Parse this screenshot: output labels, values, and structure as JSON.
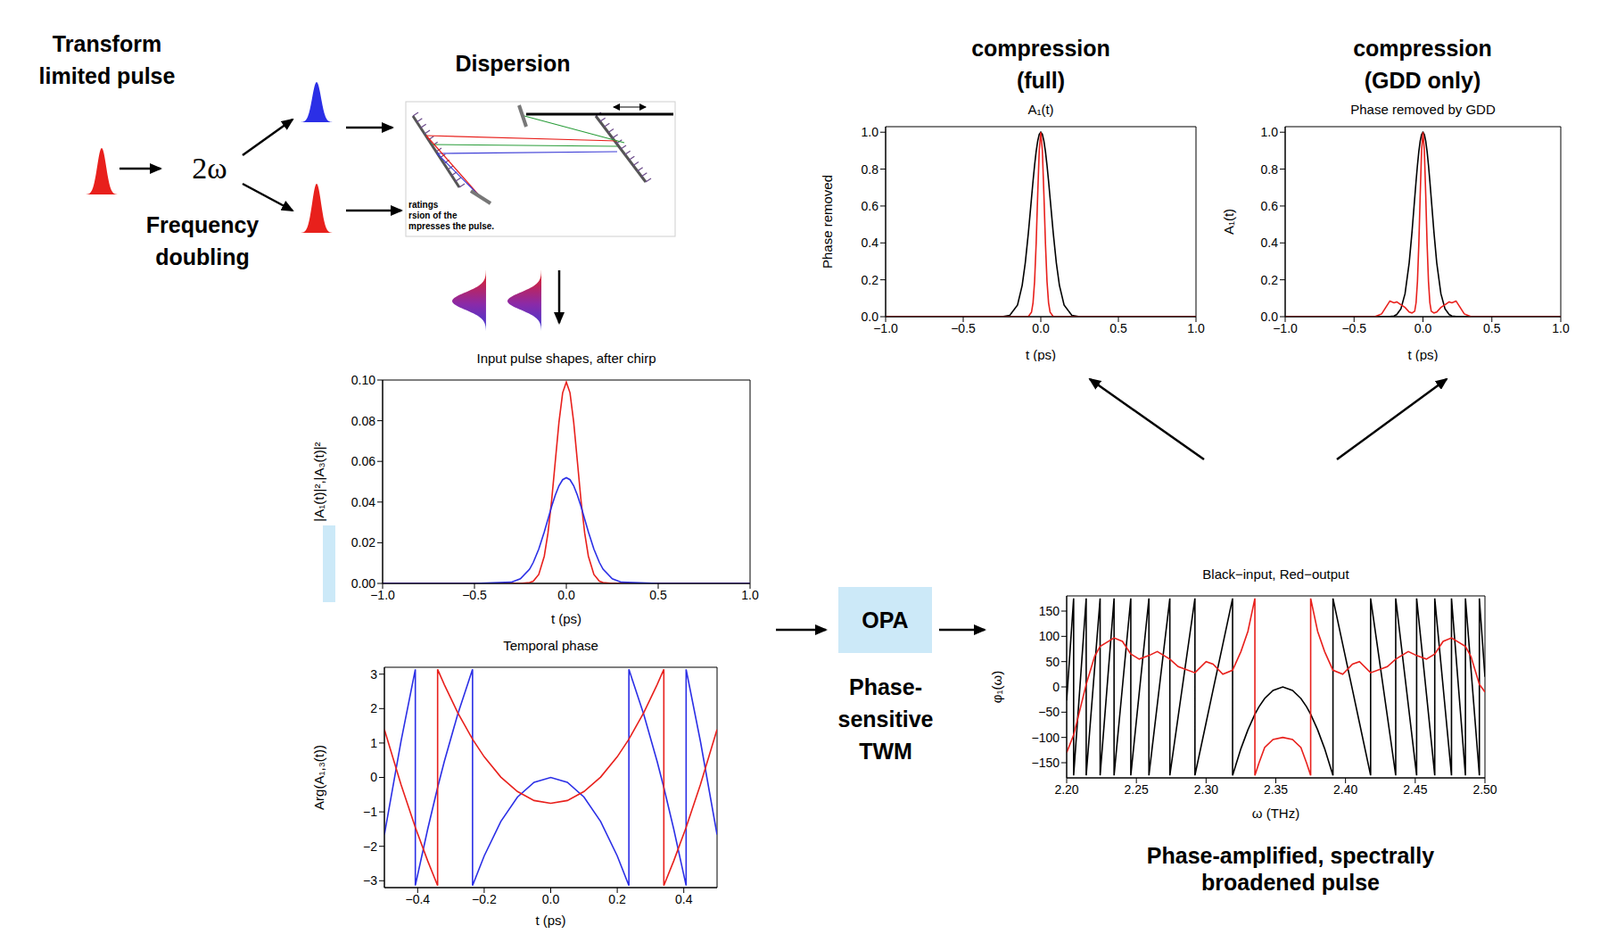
{
  "diagram": {
    "source": {
      "title": "Transform limited pulse",
      "operation": "2ω",
      "operation_label": "Frequency doubling"
    },
    "dispersion": {
      "title": "Dispersion",
      "image_text": [
        "ratings",
        "rsion of the",
        "mpresses the pulse."
      ]
    },
    "opa": {
      "label": "OPA",
      "caption": "Phase-sensitive TWM"
    },
    "output_caption": "Phase-amplified, spectrally broadened pulse",
    "compression_full_title": "compression (full)",
    "compression_gdd_title": "compression (GDD only)"
  },
  "chart_data": [
    {
      "type": "line",
      "title": "Input pulse shapes, after chirp",
      "x_label": "t (ps)",
      "y_label": "|A₁(t)|²,|A₃(t)|²",
      "x": [
        -1,
        -0.5,
        -0.3,
        -0.25,
        -0.2,
        -0.18,
        -0.15,
        -0.12,
        -0.1,
        -0.08,
        -0.06,
        -0.04,
        -0.02,
        0,
        0.02,
        0.04,
        0.06,
        0.08,
        0.1,
        0.12,
        0.15,
        0.18,
        0.2,
        0.25,
        0.3,
        0.5,
        1
      ],
      "series": [
        {
          "color": "#e8201c",
          "values": [
            0,
            0,
            0,
            0,
            0.0004,
            0.0011,
            0.0044,
            0.0134,
            0.0247,
            0.0407,
            0.0601,
            0.0793,
            0.0937,
            0.099,
            0.0937,
            0.0793,
            0.0601,
            0.0407,
            0.0247,
            0.0134,
            0.0044,
            0.0011,
            0.0004,
            0,
            0,
            0,
            0
          ]
        },
        {
          "color": "#2b2fe6",
          "values": [
            0,
            0,
            0.0006,
            0.0023,
            0.007,
            0.0103,
            0.0169,
            0.0253,
            0.0316,
            0.0378,
            0.0434,
            0.048,
            0.051,
            0.052,
            0.051,
            0.048,
            0.0434,
            0.0378,
            0.0316,
            0.0253,
            0.0169,
            0.0103,
            0.007,
            0.0023,
            0.0006,
            0,
            0
          ]
        }
      ],
      "xlim": [
        -1,
        1
      ],
      "ylim": [
        0,
        0.1
      ],
      "xticks": [
        {
          "value": -1,
          "label": "−1.0"
        },
        {
          "value": -0.5,
          "label": "−0.5"
        },
        {
          "value": 0,
          "label": "0.0"
        },
        0.5,
        {
          "value": 1,
          "label": "1.0"
        }
      ],
      "yticks": [
        {
          "value": 0,
          "label": "0.00"
        },
        0.02,
        0.04,
        0.06,
        0.08,
        {
          "value": 0.1,
          "label": "0.10"
        }
      ]
    },
    {
      "type": "line",
      "title": "Temporal phase",
      "x_label": "t (ps)",
      "y_label": "Arg(A₁,₃(t))",
      "x": [
        -0.5,
        -0.45,
        -0.407,
        -0.407,
        -0.37,
        -0.34,
        -0.34,
        -0.32,
        -0.28,
        -0.235,
        -0.235,
        -0.2,
        -0.15,
        -0.1,
        -0.05,
        0,
        0.05,
        0.1,
        0.15,
        0.2,
        0.235,
        0.235,
        0.28,
        0.32,
        0.34,
        0.34,
        0.37,
        0.407,
        0.407,
        0.45,
        0.5
      ],
      "series": [
        {
          "color": "#2b2fe6",
          "values": [
            -1.66,
            1.05,
            3.14,
            -3.14,
            -1.51,
            -0.29,
            -0.29,
            0.46,
            1.82,
            3.14,
            -3.14,
            -2.28,
            -1.28,
            -0.57,
            -0.14,
            0,
            -0.14,
            -0.57,
            -1.28,
            -2.28,
            -3.14,
            3.14,
            1.82,
            0.46,
            -0.29,
            -0.29,
            -1.51,
            -3.14,
            3.14,
            1.05,
            -1.66
          ]
        },
        {
          "color": "#e8201c",
          "values": [
            1.39,
            -0.21,
            -1.45,
            -1.45,
            -2.42,
            -3.14,
            3.14,
            2.7,
            1.89,
            1.11,
            1.11,
            0.6,
            0.01,
            -0.41,
            -0.67,
            -0.75,
            -0.67,
            -0.41,
            0.01,
            0.6,
            1.11,
            1.11,
            1.89,
            2.7,
            3.14,
            -3.14,
            -2.42,
            -1.45,
            -1.45,
            -0.21,
            1.39
          ]
        }
      ],
      "xlim": [
        -0.5,
        0.5
      ],
      "ylim": [
        -3.2,
        3.2
      ],
      "xticks": [
        {
          "value": -0.4,
          "label": "−0.4"
        },
        {
          "value": -0.2,
          "label": "−0.2"
        },
        {
          "value": 0,
          "label": "0.0"
        },
        0.2,
        0.4
      ],
      "yticks": [
        {
          "value": -3,
          "label": "−3"
        },
        {
          "value": -2,
          "label": "−2"
        },
        {
          "value": -1,
          "label": "−1"
        },
        0,
        1,
        2,
        3
      ]
    },
    {
      "type": "line",
      "title": "Black−input, Red−output",
      "x_label": "ω (THz)",
      "y_label": "φ₁(ω)",
      "x": [
        2.2,
        2.205,
        2.205,
        2.21,
        2.214,
        2.214,
        2.22,
        2.224,
        2.224,
        2.234,
        2.234,
        2.24,
        2.246,
        2.246,
        2.252,
        2.259,
        2.259,
        2.265,
        2.274,
        2.274,
        2.28,
        2.292,
        2.292,
        2.3,
        2.305,
        2.312,
        2.319,
        2.319,
        2.325,
        2.33,
        2.335,
        2.335,
        2.338,
        2.342,
        2.348,
        2.355,
        2.362,
        2.368,
        2.372,
        2.375,
        2.375,
        2.38,
        2.385,
        2.391,
        2.391,
        2.398,
        2.405,
        2.41,
        2.418,
        2.418,
        2.43,
        2.436,
        2.436,
        2.445,
        2.451,
        2.451,
        2.458,
        2.464,
        2.464,
        2.47,
        2.476,
        2.476,
        2.486,
        2.486,
        2.49,
        2.496,
        2.496,
        2.5
      ],
      "series": [
        {
          "color": "#000000",
          "values": [
            -27,
            175,
            -175,
            19,
            175,
            -175,
            35,
            175,
            -175,
            175,
            -175,
            0,
            175,
            -175,
            -13,
            175,
            -175,
            -35,
            175,
            -175,
            -58,
            175,
            -175,
            -71,
            -6,
            84,
            175,
            -175,
            -122,
            -85,
            -54,
            -54,
            -39,
            -23,
            -7,
            0,
            -7,
            -23,
            -39,
            -54,
            -54,
            -85,
            -122,
            -175,
            175,
            84,
            -6,
            -71,
            -175,
            175,
            -58,
            -175,
            175,
            -35,
            -175,
            175,
            -13,
            -175,
            175,
            0,
            -175,
            175,
            -175,
            175,
            35,
            -175,
            175,
            20
          ]
        },
        {
          "color": "#e8201c",
          "values": [
            -130,
            -95,
            -95,
            -40,
            5,
            5,
            60,
            80,
            80,
            97,
            97,
            90,
            65,
            65,
            55,
            62,
            62,
            70,
            55,
            55,
            40,
            28,
            28,
            50,
            45,
            25,
            33,
            33,
            70,
            110,
            175,
            -175,
            -150,
            -120,
            -104,
            -100,
            -104,
            -120,
            -150,
            -175,
            175,
            110,
            70,
            33,
            33,
            25,
            45,
            50,
            28,
            28,
            40,
            55,
            55,
            70,
            62,
            62,
            55,
            65,
            65,
            90,
            97,
            97,
            80,
            80,
            60,
            5,
            5,
            -10
          ]
        }
      ],
      "xlim": [
        2.2,
        2.5
      ],
      "ylim": [
        -180,
        180
      ],
      "xticks": [
        {
          "value": 2.2,
          "label": "2.20"
        },
        2.25,
        {
          "value": 2.3,
          "label": "2.30"
        },
        2.35,
        {
          "value": 2.4,
          "label": "2.40"
        },
        2.45,
        {
          "value": 2.5,
          "label": "2.50"
        }
      ],
      "yticks": [
        {
          "value": -150,
          "label": "−150"
        },
        {
          "value": -100,
          "label": "−100"
        },
        {
          "value": -50,
          "label": "−50"
        },
        0,
        50,
        100,
        150
      ]
    },
    {
      "type": "line",
      "title": "A₁(t)",
      "x_label": "t (ps)",
      "y_label": "Phase removed",
      "x": [
        -1,
        -0.4,
        -0.3,
        -0.25,
        -0.2,
        -0.15,
        -0.12,
        -0.1,
        -0.08,
        -0.06,
        -0.05,
        -0.04,
        -0.03,
        -0.02,
        -0.01,
        0,
        0.01,
        0.02,
        0.03,
        0.04,
        0.05,
        0.06,
        0.08,
        0.1,
        0.12,
        0.15,
        0.2,
        0.25,
        0.3,
        0.4,
        1
      ],
      "series": [
        {
          "color": "#000000",
          "values": [
            0,
            0,
            0,
            0,
            0.007,
            0.063,
            0.17,
            0.292,
            0.455,
            0.642,
            0.735,
            0.821,
            0.895,
            0.952,
            0.988,
            1,
            0.988,
            0.952,
            0.895,
            0.821,
            0.735,
            0.642,
            0.455,
            0.292,
            0.17,
            0.063,
            0.007,
            0,
            0,
            0,
            0
          ]
        },
        {
          "color": "#e8201c",
          "values": [
            0,
            0,
            0,
            0,
            0,
            0,
            0,
            0,
            0.001,
            0.024,
            0.076,
            0.191,
            0.395,
            0.661,
            0.902,
            1,
            0.902,
            0.661,
            0.395,
            0.191,
            0.076,
            0.024,
            0.001,
            0,
            0,
            0,
            0,
            0,
            0,
            0,
            0
          ]
        }
      ],
      "xlim": [
        -1,
        1
      ],
      "ylim": [
        0,
        1.03
      ],
      "xticks": [
        {
          "value": -1,
          "label": "−1.0"
        },
        {
          "value": -0.5,
          "label": "−0.5"
        },
        {
          "value": 0,
          "label": "0.0"
        },
        0.5,
        {
          "value": 1,
          "label": "1.0"
        }
      ],
      "yticks": [
        {
          "value": 0,
          "label": "0.0"
        },
        0.2,
        0.4,
        0.6,
        0.8,
        {
          "value": 1,
          "label": "1.0"
        }
      ]
    },
    {
      "type": "line",
      "title": "Phase removed by GDD",
      "x_label": "t (ps)",
      "y_label": "A₁(t)",
      "x": [
        -1,
        -0.5,
        -0.35,
        -0.3,
        -0.27,
        -0.24,
        -0.21,
        -0.19,
        -0.16,
        -0.13,
        -0.1,
        -0.08,
        -0.06,
        -0.05,
        -0.04,
        -0.03,
        -0.02,
        -0.01,
        0,
        0.01,
        0.02,
        0.03,
        0.04,
        0.05,
        0.06,
        0.08,
        0.1,
        0.13,
        0.16,
        0.19,
        0.21,
        0.24,
        0.27,
        0.3,
        0.35,
        0.5,
        1
      ],
      "series": [
        {
          "color": "#000000",
          "values": [
            0,
            0,
            0,
            0,
            0,
            0.001,
            0.004,
            0.012,
            0.043,
            0.125,
            0.292,
            0.455,
            0.642,
            0.735,
            0.821,
            0.895,
            0.952,
            0.988,
            1,
            0.988,
            0.952,
            0.895,
            0.821,
            0.735,
            0.642,
            0.455,
            0.292,
            0.125,
            0.043,
            0.012,
            0.004,
            0.001,
            0,
            0,
            0,
            0,
            0
          ]
        },
        {
          "color": "#e8201c",
          "values": [
            0,
            0,
            0,
            0.015,
            0.05,
            0.085,
            0.075,
            0.08,
            0.065,
            0.05,
            0.025,
            0.02,
            0.03,
            0.076,
            0.191,
            0.395,
            0.661,
            0.902,
            1,
            0.902,
            0.661,
            0.395,
            0.191,
            0.076,
            0.03,
            0.02,
            0.025,
            0.05,
            0.065,
            0.08,
            0.075,
            0.085,
            0.05,
            0.015,
            0,
            0,
            0
          ]
        }
      ],
      "xlim": [
        -1,
        1
      ],
      "ylim": [
        0,
        1.03
      ],
      "xticks": [
        {
          "value": -1,
          "label": "−1.0"
        },
        {
          "value": -0.5,
          "label": "−0.5"
        },
        {
          "value": 0,
          "label": "0.0"
        },
        0.5,
        {
          "value": 1,
          "label": "1.0"
        }
      ],
      "yticks": [
        {
          "value": 0,
          "label": "0.0"
        },
        0.2,
        0.4,
        0.6,
        0.8,
        {
          "value": 1,
          "label": "1.0"
        }
      ]
    }
  ]
}
